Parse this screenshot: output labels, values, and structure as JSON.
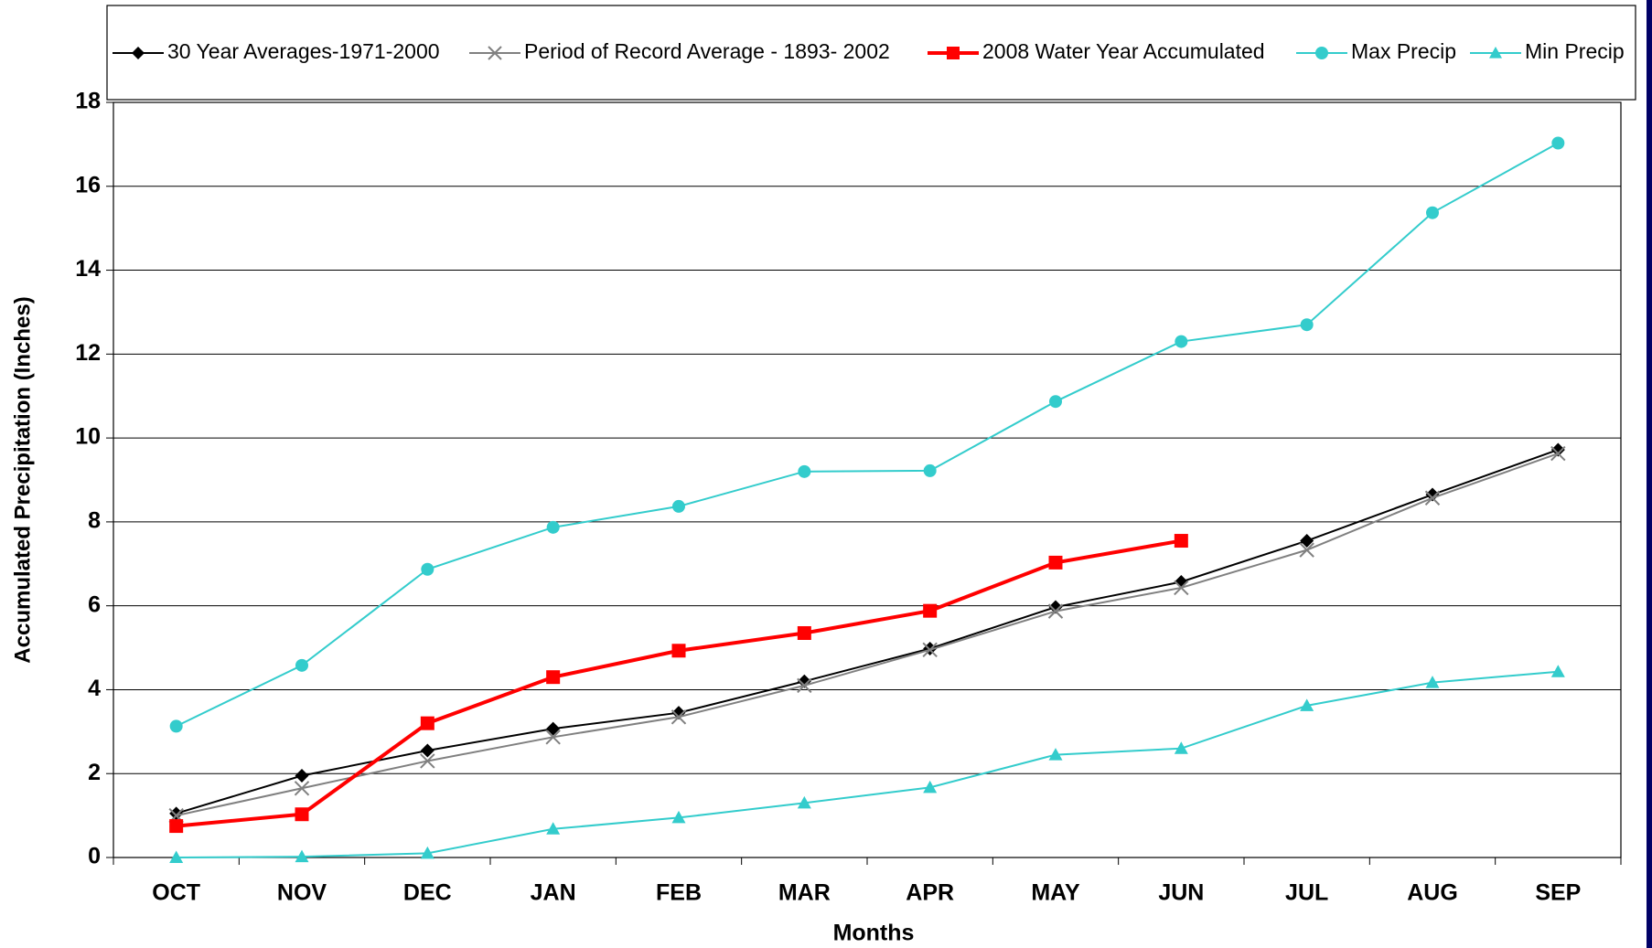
{
  "chart_data": {
    "type": "line",
    "x_label": "Months",
    "y_label": "Accumulated Precipitation (Inches)",
    "categories": [
      "OCT",
      "NOV",
      "DEC",
      "JAN",
      "FEB",
      "MAR",
      "APR",
      "MAY",
      "JUN",
      "JUL",
      "AUG",
      "SEP"
    ],
    "ylim": [
      0,
      18
    ],
    "yticks": [
      0,
      2,
      4,
      6,
      8,
      10,
      12,
      14,
      16,
      18
    ],
    "grid": true,
    "legend": "top",
    "series": [
      {
        "name": "30 Year Averages-1971-2000",
        "color": "#000000",
        "marker": "diamond",
        "values": [
          1.05,
          1.95,
          2.55,
          3.07,
          3.45,
          4.2,
          4.98,
          5.97,
          6.57,
          7.55,
          8.65,
          9.72
        ]
      },
      {
        "name": "Period of Record Average - 1893- 2002",
        "color": "#808080",
        "marker": "x",
        "values": [
          1.0,
          1.65,
          2.3,
          2.87,
          3.35,
          4.1,
          4.95,
          5.87,
          6.43,
          7.33,
          8.57,
          9.63
        ]
      },
      {
        "name": "2008 Water Year Accumulated",
        "color": "#ff0000",
        "marker": "square",
        "values": [
          0.75,
          1.03,
          3.2,
          4.3,
          4.93,
          5.35,
          5.88,
          7.03,
          7.55,
          null,
          null,
          null
        ]
      },
      {
        "name": "Max Precip",
        "color": "#33cccc",
        "marker": "circle",
        "values": [
          3.13,
          4.58,
          6.87,
          7.87,
          8.37,
          9.2,
          9.22,
          10.87,
          12.3,
          12.7,
          15.37,
          17.03
        ]
      },
      {
        "name": "Min Precip",
        "color": "#33cccc",
        "marker": "triangle",
        "values": [
          0,
          0.02,
          0.1,
          0.68,
          0.95,
          1.3,
          1.67,
          2.45,
          2.6,
          3.62,
          4.17,
          4.43
        ]
      }
    ]
  }
}
